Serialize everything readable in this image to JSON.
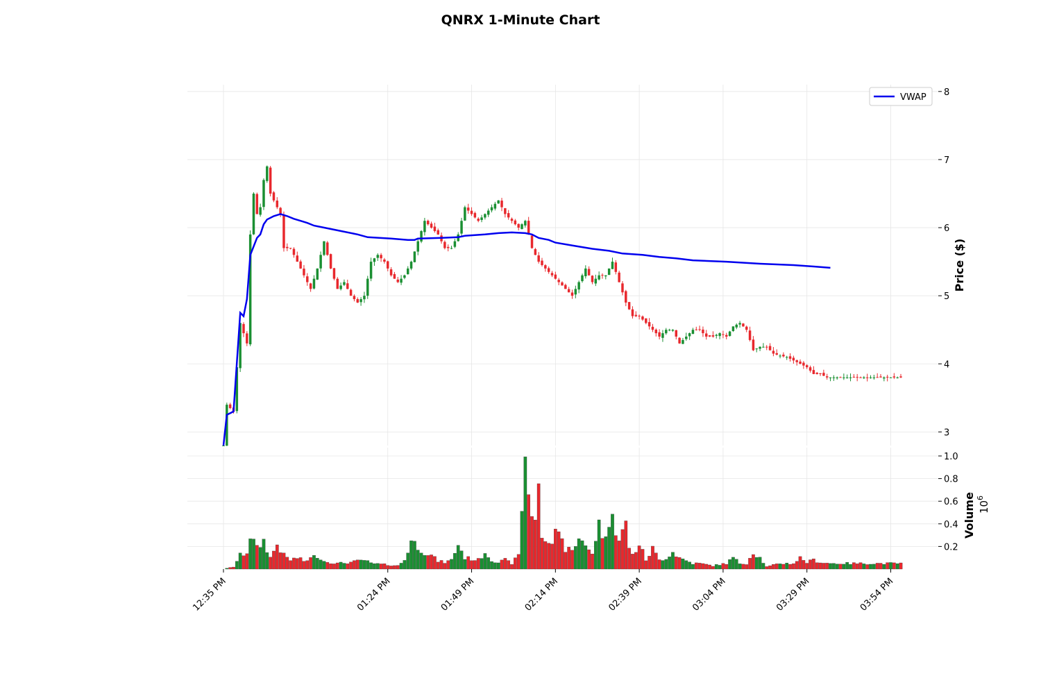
{
  "chart_data": {
    "type": "candlestick",
    "title": "QNRX 1-Minute Chart",
    "price_panel": {
      "ylabel": "Price ($)",
      "ylim": [
        2.8,
        8.1
      ],
      "yticks": [
        3,
        4,
        5,
        6,
        7,
        8
      ],
      "grid": true,
      "legend": {
        "position": "top-right",
        "entries": [
          "VWAP"
        ]
      }
    },
    "volume_panel": {
      "ylabel": "Volume",
      "scale_label": "10^6",
      "ylim": [
        0,
        1.0
      ],
      "yticks": [
        0.2,
        0.4,
        0.6,
        0.8,
        1.0
      ],
      "ytick_labels": [
        "0.2",
        "0.4",
        "0.6",
        "0.8",
        "1.0"
      ]
    },
    "xaxis": {
      "start_time": "12:35 PM",
      "end_time": "03:57 PM",
      "interval_minutes": 1,
      "tick_labels": [
        "12:35 PM",
        "01:24 PM",
        "01:49 PM",
        "02:14 PM",
        "02:39 PM",
        "03:04 PM",
        "03:29 PM",
        "03:54 PM"
      ]
    },
    "close_anchors": [
      [
        0,
        2.8
      ],
      [
        1,
        3.4
      ],
      [
        3,
        3.3
      ],
      [
        5,
        4.6
      ],
      [
        7,
        4.3
      ],
      [
        8,
        5.9
      ],
      [
        9,
        6.5
      ],
      [
        10,
        6.2
      ],
      [
        11,
        6.3
      ],
      [
        12,
        6.7
      ],
      [
        13,
        6.9
      ],
      [
        14,
        6.5
      ],
      [
        16,
        6.3
      ],
      [
        17,
        6.2
      ],
      [
        18,
        5.7
      ],
      [
        20,
        5.7
      ],
      [
        22,
        5.5
      ],
      [
        24,
        5.3
      ],
      [
        26,
        5.1
      ],
      [
        28,
        5.4
      ],
      [
        30,
        5.8
      ],
      [
        32,
        5.4
      ],
      [
        34,
        5.1
      ],
      [
        36,
        5.2
      ],
      [
        38,
        5.0
      ],
      [
        40,
        4.9
      ],
      [
        42,
        5.0
      ],
      [
        44,
        5.5
      ],
      [
        46,
        5.6
      ],
      [
        48,
        5.5
      ],
      [
        50,
        5.3
      ],
      [
        52,
        5.2
      ],
      [
        54,
        5.3
      ],
      [
        56,
        5.5
      ],
      [
        58,
        5.8
      ],
      [
        60,
        6.1
      ],
      [
        62,
        6.0
      ],
      [
        64,
        5.9
      ],
      [
        66,
        5.7
      ],
      [
        68,
        5.7
      ],
      [
        70,
        5.9
      ],
      [
        72,
        6.3
      ],
      [
        74,
        6.2
      ],
      [
        76,
        6.1
      ],
      [
        78,
        6.2
      ],
      [
        80,
        6.3
      ],
      [
        82,
        6.4
      ],
      [
        84,
        6.2
      ],
      [
        86,
        6.1
      ],
      [
        88,
        6.0
      ],
      [
        90,
        6.1
      ],
      [
        92,
        5.7
      ],
      [
        94,
        5.5
      ],
      [
        96,
        5.4
      ],
      [
        98,
        5.3
      ],
      [
        100,
        5.2
      ],
      [
        102,
        5.1
      ],
      [
        104,
        5.0
      ],
      [
        106,
        5.2
      ],
      [
        108,
        5.4
      ],
      [
        110,
        5.2
      ],
      [
        112,
        5.3
      ],
      [
        114,
        5.3
      ],
      [
        116,
        5.5
      ],
      [
        118,
        5.2
      ],
      [
        120,
        4.9
      ],
      [
        122,
        4.7
      ],
      [
        124,
        4.7
      ],
      [
        126,
        4.6
      ],
      [
        128,
        4.5
      ],
      [
        130,
        4.4
      ],
      [
        132,
        4.5
      ],
      [
        134,
        4.5
      ],
      [
        136,
        4.3
      ],
      [
        138,
        4.4
      ],
      [
        140,
        4.5
      ],
      [
        142,
        4.5
      ],
      [
        144,
        4.4
      ],
      [
        146,
        4.4
      ],
      [
        148,
        4.45
      ],
      [
        150,
        4.4
      ],
      [
        152,
        4.55
      ],
      [
        154,
        4.6
      ],
      [
        156,
        4.5
      ],
      [
        158,
        4.2
      ],
      [
        160,
        4.25
      ],
      [
        162,
        4.25
      ],
      [
        164,
        4.15
      ],
      [
        166,
        4.12
      ],
      [
        168,
        4.1
      ],
      [
        170,
        4.05
      ],
      [
        172,
        4.0
      ],
      [
        174,
        3.95
      ],
      [
        176,
        3.85
      ],
      [
        178,
        3.85
      ],
      [
        180,
        3.8
      ],
      [
        181,
        3.8
      ]
    ],
    "vwap": [
      [
        0,
        2.8
      ],
      [
        1,
        3.25
      ],
      [
        3,
        3.3
      ],
      [
        5,
        4.75
      ],
      [
        6,
        4.7
      ],
      [
        7,
        4.95
      ],
      [
        8,
        5.6
      ],
      [
        10,
        5.85
      ],
      [
        11,
        5.9
      ],
      [
        12,
        6.05
      ],
      [
        13,
        6.12
      ],
      [
        15,
        6.17
      ],
      [
        17,
        6.2
      ],
      [
        19,
        6.17
      ],
      [
        21,
        6.13
      ],
      [
        23,
        6.1
      ],
      [
        25,
        6.07
      ],
      [
        27,
        6.03
      ],
      [
        30,
        6.0
      ],
      [
        35,
        5.95
      ],
      [
        40,
        5.9
      ],
      [
        43,
        5.86
      ],
      [
        50,
        5.84
      ],
      [
        55,
        5.82
      ],
      [
        57,
        5.82
      ],
      [
        58,
        5.84
      ],
      [
        65,
        5.85
      ],
      [
        70,
        5.86
      ],
      [
        72,
        5.88
      ],
      [
        78,
        5.9
      ],
      [
        82,
        5.92
      ],
      [
        86,
        5.93
      ],
      [
        90,
        5.92
      ],
      [
        92,
        5.9
      ],
      [
        94,
        5.85
      ],
      [
        97,
        5.82
      ],
      [
        99,
        5.78
      ],
      [
        105,
        5.73
      ],
      [
        110,
        5.69
      ],
      [
        115,
        5.66
      ],
      [
        119,
        5.62
      ],
      [
        125,
        5.6
      ],
      [
        130,
        5.57
      ],
      [
        135,
        5.55
      ],
      [
        140,
        5.52
      ],
      [
        150,
        5.5
      ],
      [
        160,
        5.47
      ],
      [
        170,
        5.45
      ],
      [
        176,
        5.43
      ],
      [
        181,
        5.41
      ]
    ],
    "volume_profile": [
      [
        0,
        0.0
      ],
      [
        3,
        0.02
      ],
      [
        5,
        0.12
      ],
      [
        7,
        0.15
      ],
      [
        8,
        0.3
      ],
      [
        10,
        0.18
      ],
      [
        12,
        0.25
      ],
      [
        14,
        0.1
      ],
      [
        16,
        0.22
      ],
      [
        18,
        0.12
      ],
      [
        20,
        0.08
      ],
      [
        22,
        0.1
      ],
      [
        24,
        0.07
      ],
      [
        28,
        0.12
      ],
      [
        30,
        0.07
      ],
      [
        34,
        0.05
      ],
      [
        38,
        0.06
      ],
      [
        42,
        0.08
      ],
      [
        44,
        0.05
      ],
      [
        48,
        0.04
      ],
      [
        52,
        0.03
      ],
      [
        54,
        0.08
      ],
      [
        56,
        0.25
      ],
      [
        58,
        0.2
      ],
      [
        60,
        0.15
      ],
      [
        62,
        0.12
      ],
      [
        64,
        0.07
      ],
      [
        66,
        0.06
      ],
      [
        68,
        0.08
      ],
      [
        70,
        0.22
      ],
      [
        72,
        0.1
      ],
      [
        76,
        0.08
      ],
      [
        78,
        0.15
      ],
      [
        80,
        0.08
      ],
      [
        82,
        0.06
      ],
      [
        84,
        0.08
      ],
      [
        86,
        0.05
      ],
      [
        88,
        0.12
      ],
      [
        90,
        0.98
      ],
      [
        91,
        0.7
      ],
      [
        92,
        0.5
      ],
      [
        93,
        0.45
      ],
      [
        94,
        0.75
      ],
      [
        95,
        0.25
      ],
      [
        96,
        0.27
      ],
      [
        97,
        0.2
      ],
      [
        98,
        0.25
      ],
      [
        100,
        0.4
      ],
      [
        102,
        0.15
      ],
      [
        104,
        0.2
      ],
      [
        106,
        0.25
      ],
      [
        108,
        0.2
      ],
      [
        110,
        0.15
      ],
      [
        112,
        0.4
      ],
      [
        114,
        0.25
      ],
      [
        116,
        0.6
      ],
      [
        117,
        0.35
      ],
      [
        118,
        0.25
      ],
      [
        120,
        0.4
      ],
      [
        121,
        0.2
      ],
      [
        122,
        0.12
      ],
      [
        124,
        0.22
      ],
      [
        126,
        0.08
      ],
      [
        128,
        0.18
      ],
      [
        130,
        0.08
      ],
      [
        132,
        0.1
      ],
      [
        134,
        0.15
      ],
      [
        136,
        0.1
      ],
      [
        140,
        0.05
      ],
      [
        142,
        0.05
      ],
      [
        146,
        0.03
      ],
      [
        150,
        0.05
      ],
      [
        152,
        0.1
      ],
      [
        154,
        0.05
      ],
      [
        156,
        0.05
      ],
      [
        158,
        0.15
      ],
      [
        160,
        0.1
      ],
      [
        162,
        0.02
      ],
      [
        166,
        0.05
      ],
      [
        170,
        0.05
      ],
      [
        172,
        0.1
      ],
      [
        174,
        0.06
      ],
      [
        176,
        0.08
      ],
      [
        178,
        0.06
      ],
      [
        181,
        0.05
      ]
    ],
    "colors": {
      "up": "#1a8f32",
      "down": "#e8282d",
      "vwap": "#0000ee",
      "grid": "#e6e6e6",
      "text": "#000000"
    }
  }
}
